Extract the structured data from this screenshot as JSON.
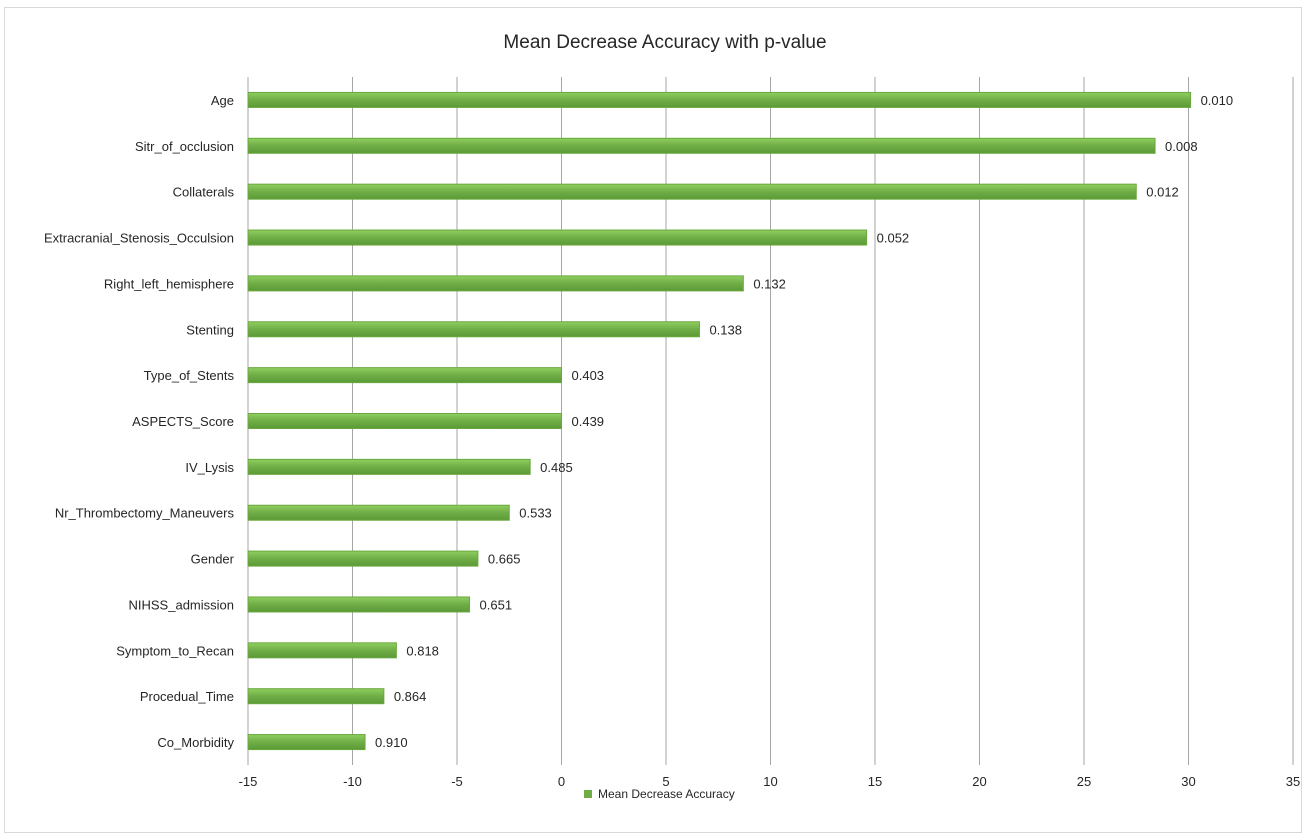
{
  "chart_data": {
    "type": "bar",
    "orientation": "horizontal",
    "title": "Mean Decrease Accuracy with p-value",
    "xlabel": "",
    "ylabel": "",
    "xlim": [
      -15,
      35
    ],
    "x_ticks": [
      -15,
      -10,
      -5,
      0,
      5,
      10,
      15,
      20,
      25,
      30,
      35
    ],
    "grid": "vertical",
    "legend_position": "bottom",
    "bar_color": "#70ad47",
    "categories": [
      "Age",
      "Sitr_of_occlusion",
      "Collaterals",
      "Extracranial_Stenosis_Occulsion",
      "Right_left_hemisphere",
      "Stenting",
      "Type_of_Stents",
      "ASPECTS_Score",
      "IV_Lysis",
      "Nr_Thrombectomy_Maneuvers",
      "Gender",
      "NIHSS_admission",
      "Symptom_to_Recan",
      "Procedual_Time",
      "Co_Morbidity"
    ],
    "series": [
      {
        "name": "Mean Decrease Accuracy",
        "values": [
          30.1,
          28.4,
          27.5,
          14.6,
          8.7,
          6.6,
          0.0,
          0.0,
          -1.5,
          -2.5,
          -4.0,
          -4.4,
          -7.9,
          -8.5,
          -9.4
        ]
      }
    ],
    "data_labels": [
      "0.010",
      "0.008",
      "0.012",
      "0.052",
      "0.132",
      "0.138",
      "0.403",
      "0.439",
      "0.485",
      "0.533",
      "0.665",
      "0.651",
      "0.818",
      "0.864",
      "0.910"
    ]
  }
}
